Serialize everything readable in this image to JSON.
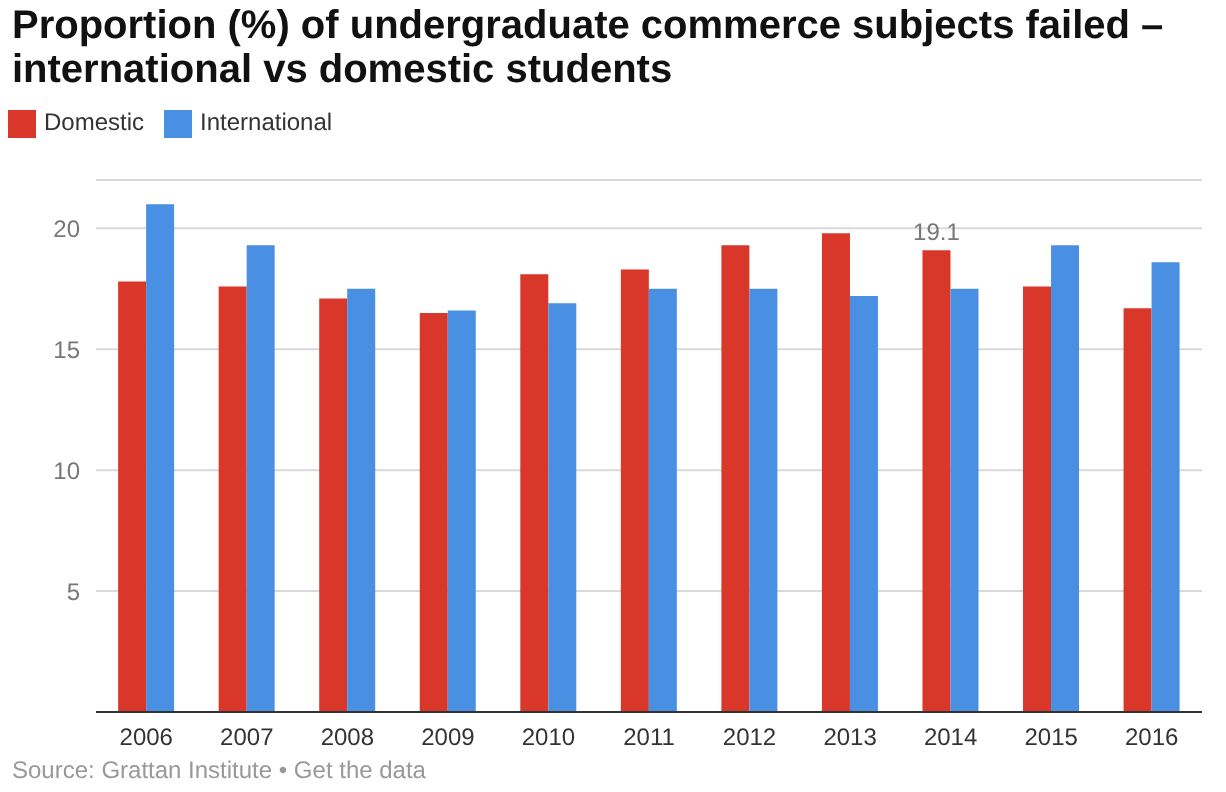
{
  "chart_data": {
    "type": "bar",
    "title": "Proportion (%) of undergraduate commerce subjects failed – international vs domestic students",
    "categories": [
      "2006",
      "2007",
      "2008",
      "2009",
      "2010",
      "2011",
      "2012",
      "2013",
      "2014",
      "2015",
      "2016"
    ],
    "series": [
      {
        "name": "Domestic",
        "color": "#d8372a",
        "values": [
          17.8,
          17.6,
          17.1,
          16.5,
          18.1,
          18.3,
          19.3,
          19.8,
          19.1,
          17.6,
          16.7
        ],
        "value_labels": [
          null,
          null,
          null,
          null,
          null,
          null,
          null,
          null,
          "19.1",
          null,
          null
        ]
      },
      {
        "name": "International",
        "color": "#4a90e2",
        "values": [
          21.0,
          19.3,
          17.5,
          16.6,
          16.9,
          17.5,
          17.5,
          17.2,
          17.5,
          19.3,
          18.6
        ]
      }
    ],
    "ylim": [
      0,
      22
    ],
    "yticks": [
      5,
      10,
      15,
      20
    ],
    "grid": "y",
    "legend": "top left",
    "annotations": [
      "Source: Grattan Institute • Get the data"
    ]
  }
}
